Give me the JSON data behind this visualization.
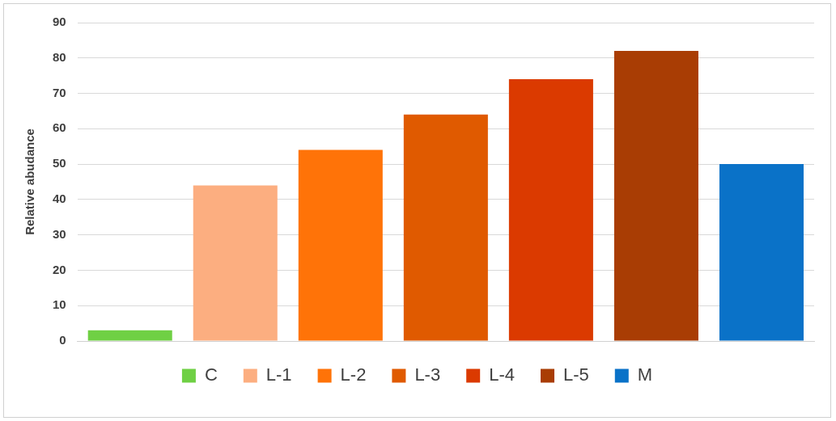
{
  "chart_data": {
    "type": "bar",
    "ylabel": "Relative abudance",
    "categories": [
      null,
      null,
      null,
      null,
      null,
      null,
      null
    ],
    "series": [
      {
        "name": "C",
        "color": "#6fd044",
        "values": [
          3,
          null,
          null,
          null,
          null,
          null,
          null
        ]
      },
      {
        "name": "L-1",
        "color": "#fcae80",
        "values": [
          null,
          44,
          null,
          null,
          null,
          null,
          null
        ]
      },
      {
        "name": "L-2",
        "color": "#ff7308",
        "values": [
          null,
          null,
          54,
          null,
          null,
          null,
          null
        ]
      },
      {
        "name": "L-3",
        "color": "#e05a00",
        "values": [
          null,
          null,
          null,
          64,
          null,
          null,
          null
        ]
      },
      {
        "name": "L-4",
        "color": "#db3a00",
        "values": [
          null,
          null,
          null,
          null,
          74,
          null,
          null
        ]
      },
      {
        "name": "L-5",
        "color": "#a93d04",
        "values": [
          null,
          null,
          null,
          null,
          null,
          82,
          null
        ]
      },
      {
        "name": "M",
        "color": "#0a72c8",
        "values": [
          null,
          null,
          null,
          null,
          null,
          null,
          50
        ]
      }
    ],
    "ylim": [
      0,
      90
    ],
    "yticks": [
      0,
      10,
      20,
      30,
      40,
      50,
      60,
      70,
      80,
      90
    ],
    "grid": "y",
    "legend": "bottom",
    "tick_labels": "y"
  }
}
